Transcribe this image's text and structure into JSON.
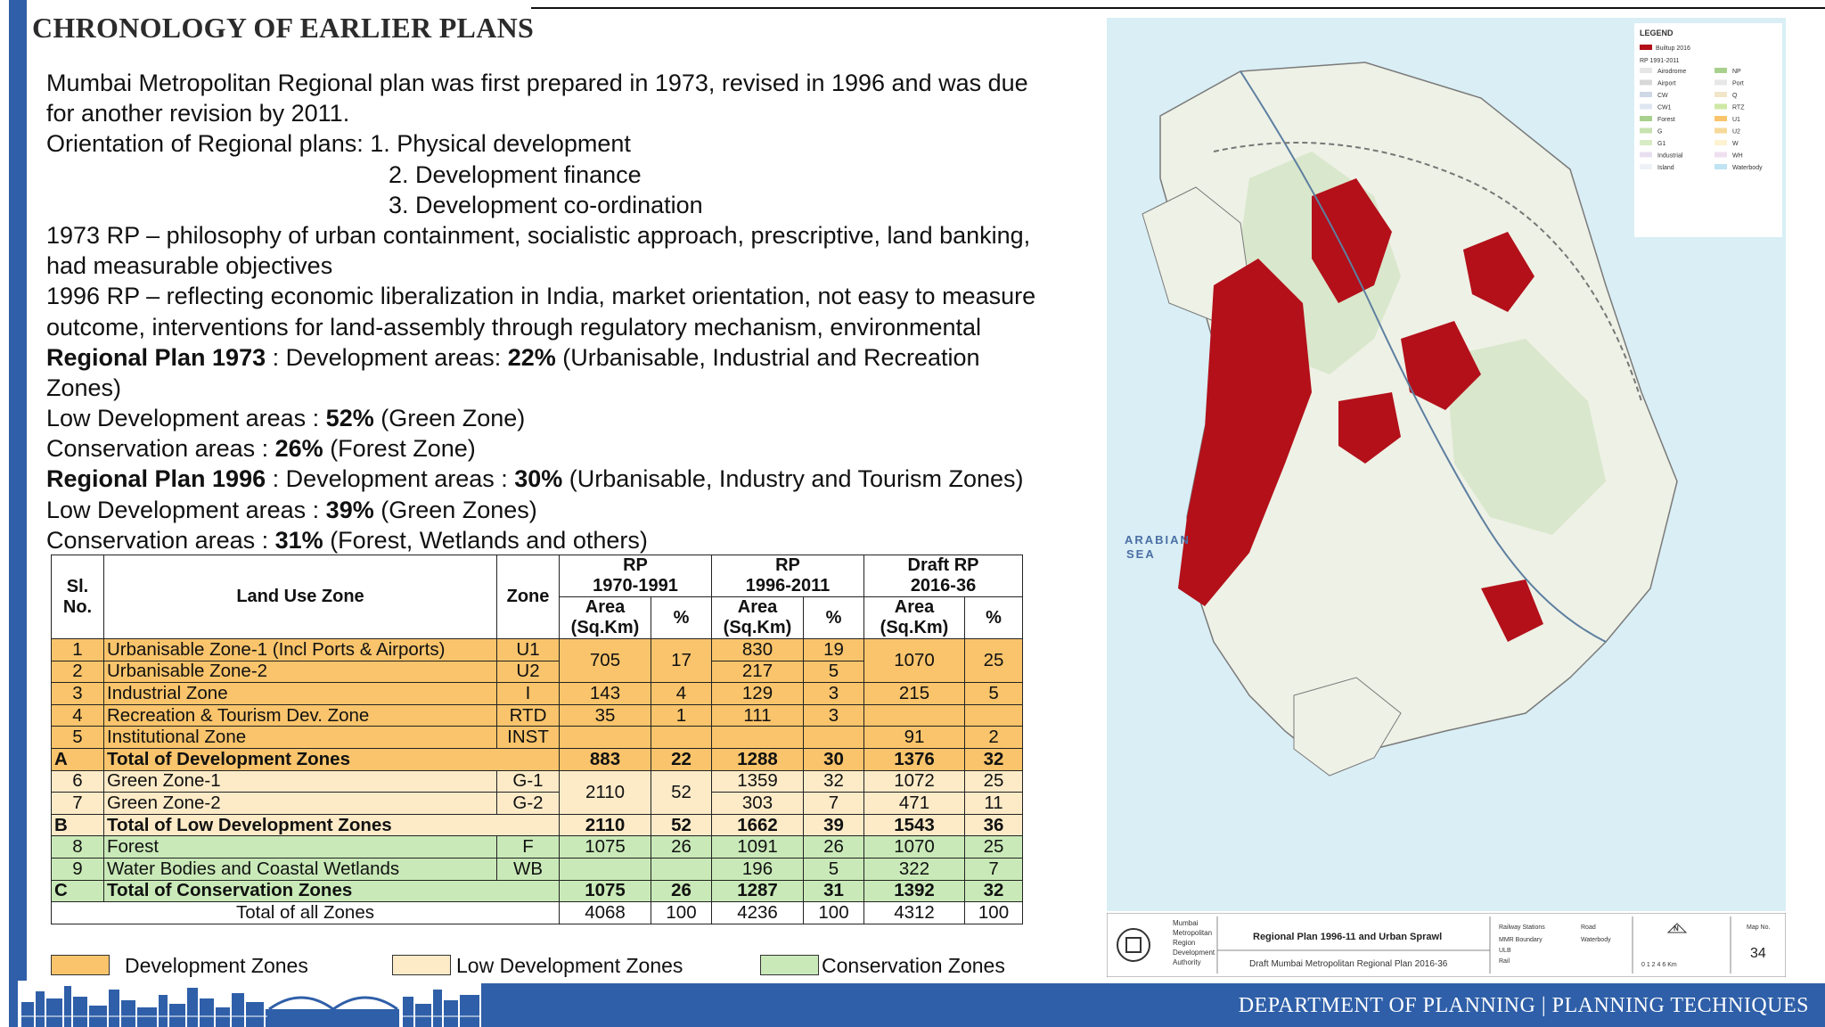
{
  "slide": {
    "title": "CHRONOLOGY OF EARLIER PLANS",
    "footer": "DEPARTMENT OF PLANNING | PLANNING TECHNIQUES"
  },
  "body": {
    "l1": "Mumbai Metropolitan Regional plan was first prepared in 1973, revised in 1996 and was due",
    "l2": "for another revision by 2011.",
    "l3": "Orientation of Regional plans: 1. Physical development",
    "l4": "2. Development finance",
    "l5": "3. Development co-ordination",
    "l6": "1973 RP – philosophy of urban containment, socialistic  approach, prescriptive, land banking,",
    "l7": "had measurable  objectives",
    "l8": "1996 RP – reflecting economic liberalization in India, market  orientation, not easy to measure",
    "l9": "outcome, interventions for  land-assembly through regulatory mechanism, environmental",
    "l10a": "Regional Plan 1973",
    "l10b": " :  Development areas: ",
    "l10c": "22%",
    "l10d": " (Urbanisable, Industrial and Recreation",
    "l11": "Zones)",
    "l12a": "Low Development areas : ",
    "l12b": "52%",
    "l12c": " (Green Zone)",
    "l13a": "Conservation areas : ",
    "l13b": "26%",
    "l13c": " (Forest Zone)",
    "l14a": "Regional Plan 1996",
    "l14b": " : Development areas : ",
    "l14c": "30%",
    "l14d": " (Urbanisable, Industry and Tourism Zones)",
    "l15a": "Low Development areas : ",
    "l15b": "39%",
    "l15c": " (Green Zones)",
    "l16a": "Conservation areas : ",
    "l16b": "31%",
    "l16c": " (Forest, Wetlands and others)"
  },
  "table": {
    "h_sl": "Sl.",
    "h_no": "No.",
    "h_zone_name": "Land Use Zone",
    "h_zone": "Zone",
    "h_rp1": "RP",
    "h_rp1_years": "1970-1991",
    "h_rp2": "RP",
    "h_rp2_years": "1996-2011",
    "h_rp3": "Draft RP",
    "h_rp3_years": "2016-36",
    "h_area": "Area",
    "h_area_unit": "(Sq.Km)",
    "h_pct": "%",
    "r1": {
      "sl": "1",
      "name": "Urbanisable  Zone-1 (Incl Ports & Airports)",
      "zone": "U1",
      "a1": "705",
      "p1": "17",
      "a2": "830",
      "p2": "19",
      "a3": "1070",
      "p3": "25"
    },
    "r2": {
      "sl": "2",
      "name": "Urbanisable Zone-2",
      "zone": "U2",
      "a2": "217",
      "p2": "5"
    },
    "r3": {
      "sl": "3",
      "name": "Industrial Zone",
      "zone": "I",
      "a1": "143",
      "p1": "4",
      "a2": "129",
      "p2": "3",
      "a3": "215",
      "p3": "5"
    },
    "r4": {
      "sl": "4",
      "name": "Recreation & Tourism Dev. Zone",
      "zone": "RTD",
      "a1": "35",
      "p1": "1",
      "a2": "111",
      "p2": "3"
    },
    "r5": {
      "sl": "5",
      "name": "Institutional Zone",
      "zone": "INST",
      "a3": "91",
      "p3": "2"
    },
    "rA": {
      "sl": "A",
      "name": "Total of Development Zones",
      "a1": "883",
      "p1": "22",
      "a2": "1288",
      "p2": "30",
      "a3": "1376",
      "p3": "32"
    },
    "r6": {
      "sl": "6",
      "name": "Green Zone-1",
      "zone": "G-1",
      "a1": "2110",
      "p1": "52",
      "a2": "1359",
      "p2": "32",
      "a3": "1072",
      "p3": "25"
    },
    "r7": {
      "sl": "7",
      "name": "Green Zone-2",
      "zone": "G-2",
      "a2": "303",
      "p2": "7",
      "a3": "471",
      "p3": "11"
    },
    "rB": {
      "sl": "B",
      "name": "Total of Low Development Zones",
      "a1": "2110",
      "p1": "52",
      "a2": "1662",
      "p2": "39",
      "a3": "1543",
      "p3": "36"
    },
    "r8": {
      "sl": "8",
      "name": "Forest",
      "zone": "F",
      "a1": "1075",
      "p1": "26",
      "a2": "1091",
      "p2": "26",
      "a3": "1070",
      "p3": "25"
    },
    "r9": {
      "sl": "9",
      "name": "Water Bodies and Coastal Wetlands",
      "zone": "WB",
      "a2": "196",
      "p2": "5",
      "a3": "322",
      "p3": "7"
    },
    "rC": {
      "sl": "C",
      "name": "Total of Conservation Zones",
      "a1": "1075",
      "p1": "26",
      "a2": "1287",
      "p2": "31",
      "a3": "1392",
      "p3": "32"
    },
    "rT": {
      "name": "Total of all  Zones",
      "a1": "4068",
      "p1": "100",
      "a2": "4236",
      "p2": "100",
      "a3": "4312",
      "p3": "100"
    }
  },
  "legend": {
    "dev": "Development Zones",
    "low": "Low Development Zones",
    "con": "Conservation Zones",
    "colors": {
      "dev": "#f9c46b",
      "low": "#fdebc8",
      "con": "#c9eab8"
    }
  },
  "map": {
    "legend_title": "LEGEND",
    "builtup": "Builtup 2016",
    "rp_label": "RP 1991-2011",
    "items_left": [
      "Airodrome",
      "Airport",
      "CW",
      "CW1",
      "Forest",
      "G",
      "G1",
      "Industrial",
      "Island"
    ],
    "items_right": [
      "NP",
      "Port",
      "Q",
      "RTZ",
      "U1",
      "U2",
      "W",
      "WH",
      "Waterbody"
    ],
    "sea_label_1": "ARABIAN",
    "sea_label_2": "SEA",
    "authority_lines": [
      "Mumbai",
      "Metropolitan",
      "Region",
      "Development",
      "Authority"
    ],
    "map_title": "Regional Plan 1996-11 and Urban Sprawl",
    "map_subtitle": "Draft Mumbai Metropolitan Regional Plan 2016-36",
    "key_railway": "Railway Stations",
    "key_road": "Road",
    "key_mmr": "MMR Boundary",
    "key_waterbody": "Waterbody",
    "key_ulb": "ULB",
    "key_rail": "Rail",
    "north": "N",
    "scale_text": "0 1 2    4    6 Km",
    "map_no_label": "Map No.",
    "map_no": "34"
  }
}
